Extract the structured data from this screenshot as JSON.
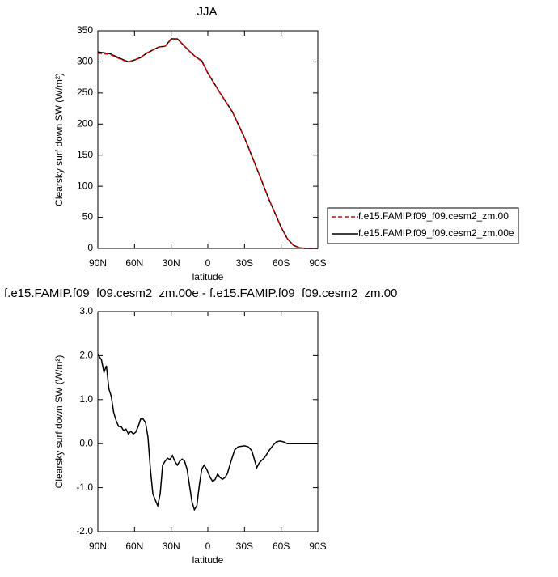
{
  "chart_data": [
    {
      "type": "line",
      "title": "JJA",
      "xlabel": "latitude",
      "ylabel": "Clearsky surf down SW (W/m²)",
      "x": [
        90,
        80,
        70,
        65,
        60,
        55,
        50,
        45,
        40,
        35,
        30,
        25,
        20,
        15,
        10,
        5,
        0,
        -10,
        -20,
        -30,
        -40,
        -50,
        -60,
        -65,
        -70,
        -75,
        -80,
        -90
      ],
      "series": [
        {
          "name": "f.e15.FAMIP.f09_f09.cesm2_zm.00",
          "color": "#d40000",
          "dashed": true,
          "values": [
            314,
            312,
            303,
            300,
            303,
            307,
            314,
            319,
            324,
            325,
            336,
            337,
            327,
            317,
            308,
            301,
            282,
            250,
            220,
            178,
            129,
            79,
            34,
            16,
            5,
            1,
            0,
            0
          ]
        },
        {
          "name": "f.e15.FAMIP.f09_f09.cesm2_zm.00e",
          "color": "#000000",
          "dashed": false,
          "values": [
            316,
            313,
            304,
            300,
            303,
            307,
            314,
            319,
            324,
            325,
            337,
            337,
            327,
            317,
            308,
            302,
            282,
            250,
            220,
            178,
            129,
            79,
            34,
            16,
            5,
            1,
            0,
            0
          ]
        }
      ],
      "xlim": [
        90,
        -90
      ],
      "xticks": [
        {
          "value": 90,
          "label": "90N"
        },
        {
          "value": 60,
          "label": "60N"
        },
        {
          "value": 30,
          "label": "30N"
        },
        0,
        {
          "value": -30,
          "label": "30S"
        },
        {
          "value": -60,
          "label": "60S"
        },
        {
          "value": -90,
          "label": "90S"
        }
      ],
      "ylim": [
        0,
        350
      ],
      "yticks": [
        0,
        50,
        100,
        150,
        200,
        250,
        300,
        350
      ],
      "legend": "right"
    },
    {
      "type": "line",
      "title": "f.e15.FAMIP.f09_f09.cesm2_zm.00e - f.e15.FAMIP.f09_f09.cesm2_zm.00",
      "xlabel": "latitude",
      "ylabel": "Clearsky surf down SW (W/m²)",
      "x": [
        90,
        87,
        85,
        83,
        81,
        79,
        77,
        75,
        73,
        71,
        69,
        67,
        65,
        63,
        61,
        59,
        57,
        55,
        53,
        51,
        49,
        47,
        45,
        43,
        41,
        39,
        37,
        35,
        33,
        31,
        29,
        27,
        25,
        23,
        21,
        19,
        17,
        15,
        13,
        11,
        9,
        7,
        5,
        3,
        1,
        -2,
        -4,
        -6,
        -8,
        -10,
        -12,
        -14,
        -16,
        -18,
        -20,
        -22,
        -25,
        -30,
        -33,
        -36,
        -38,
        -40,
        -42,
        -44,
        -46,
        -48,
        -50,
        -53,
        -56,
        -59,
        -62,
        -65,
        -70,
        -90
      ],
      "series": [
        {
          "color": "#000000",
          "dashed": false,
          "values": [
            2.03,
            1.9,
            1.62,
            1.77,
            1.25,
            1.07,
            0.7,
            0.52,
            0.39,
            0.39,
            0.3,
            0.33,
            0.22,
            0.28,
            0.22,
            0.26,
            0.39,
            0.56,
            0.56,
            0.48,
            0.15,
            -0.58,
            -1.14,
            -1.28,
            -1.41,
            -1.14,
            -0.49,
            -0.4,
            -0.33,
            -0.36,
            -0.27,
            -0.4,
            -0.49,
            -0.4,
            -0.35,
            -0.4,
            -0.58,
            -0.95,
            -1.32,
            -1.5,
            -1.41,
            -0.95,
            -0.58,
            -0.49,
            -0.58,
            -0.77,
            -0.86,
            -0.81,
            -0.69,
            -0.77,
            -0.81,
            -0.77,
            -0.68,
            -0.49,
            -0.31,
            -0.14,
            -0.07,
            -0.05,
            -0.07,
            -0.16,
            -0.35,
            -0.55,
            -0.44,
            -0.38,
            -0.33,
            -0.25,
            -0.16,
            -0.05,
            0.04,
            0.06,
            0.04,
            0,
            0,
            0
          ]
        }
      ],
      "xlim": [
        90,
        -90
      ],
      "xticks": [
        {
          "value": 90,
          "label": "90N"
        },
        {
          "value": 60,
          "label": "60N"
        },
        {
          "value": 30,
          "label": "30N"
        },
        0,
        {
          "value": -30,
          "label": "30S"
        },
        {
          "value": -60,
          "label": "60S"
        },
        {
          "value": -90,
          "label": "90S"
        }
      ],
      "ylim": [
        -2,
        3
      ],
      "yticks": [
        {
          "value": -2,
          "label": "-2.0"
        },
        {
          "value": -1,
          "label": "-1.0"
        },
        {
          "value": 0,
          "label": "0.0"
        },
        {
          "value": 1,
          "label": "1.0"
        },
        {
          "value": 2,
          "label": "2.0"
        },
        {
          "value": 3,
          "label": "3.0"
        }
      ]
    }
  ]
}
